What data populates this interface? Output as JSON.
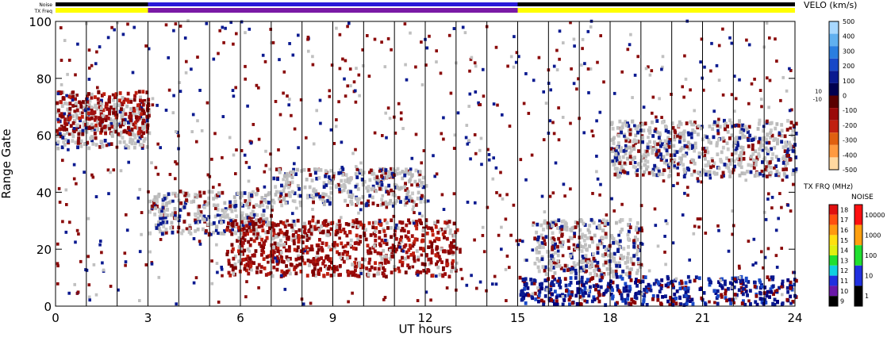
{
  "chart_data": {
    "type": "heatmap",
    "xlabel": "UT hours",
    "ylabel": "Range Gate",
    "xlim": [
      0,
      24
    ],
    "ylim": [
      0,
      100
    ],
    "x_ticks": [
      "0",
      "3",
      "6",
      "9",
      "12",
      "15",
      "18",
      "21",
      "24"
    ],
    "y_ticks": [
      "0",
      "20",
      "40",
      "60",
      "80",
      "100"
    ],
    "vertical_gridlines": [
      1,
      2,
      3,
      4,
      5,
      6,
      7,
      8,
      9,
      10,
      11,
      12,
      13,
      14,
      15,
      16,
      17,
      18,
      19,
      20,
      21,
      22,
      23
    ],
    "status_bars": {
      "noise_label": "Noise",
      "txfreq_label": "TX Freq",
      "txfreq_segments": [
        {
          "from": 0,
          "to": 3,
          "color": "#ffff00"
        },
        {
          "from": 3,
          "to": 15,
          "color": "#7a1aa6"
        },
        {
          "from": 15,
          "to": 24,
          "color": "#ffff00"
        }
      ],
      "noise_segments": [
        {
          "from": 0,
          "to": 3,
          "color": "#000000"
        },
        {
          "from": 3,
          "to": 15,
          "color": "#2a1ad8"
        },
        {
          "from": 15,
          "to": 24,
          "color": "#000000"
        }
      ]
    },
    "velocity_scale": {
      "title": "VELO (km/s)",
      "ticks": [
        "500",
        "400",
        "300",
        "200",
        "100",
        "0",
        "-100",
        "-200",
        "-300",
        "-400",
        "-500"
      ],
      "small_ticks": [
        "10",
        "-10"
      ],
      "colors": [
        "#a8d8ff",
        "#60b0f0",
        "#2a7ee0",
        "#1848c8",
        "#0a1a90",
        "#000050",
        "#5a0000",
        "#9a0a0a",
        "#c02010",
        "#e06010",
        "#ff9a40",
        "#ffd8a0"
      ]
    },
    "txfreq_scale": {
      "title": "TX FRQ (MHz)",
      "ticks": [
        "18",
        "17",
        "16",
        "15",
        "14",
        "13",
        "12",
        "11",
        "10",
        "9"
      ],
      "colors": [
        "#e01010",
        "#ff5010",
        "#ff9a10",
        "#ffe010",
        "#e0f010",
        "#20e030",
        "#10d0e0",
        "#2030e0",
        "#6a18a8",
        "#000000"
      ]
    },
    "noise_scale": {
      "title": "NOISE",
      "ticks": [
        "10000",
        "1000",
        "100",
        "10",
        "1"
      ],
      "colors": [
        "#ff1010",
        "#ffa010",
        "#20e030",
        "#2030e0",
        "#000000"
      ]
    },
    "echo_features": [
      {
        "type": "ground_scatter",
        "x": [
          0,
          3
        ],
        "gate_range": [
          55,
          72
        ]
      },
      {
        "type": "ground_scatter",
        "x": [
          3,
          7
        ],
        "gate_range": [
          25,
          40
        ]
      },
      {
        "type": "ground_scatter",
        "x": [
          7,
          12
        ],
        "gate_range": [
          35,
          48
        ]
      },
      {
        "type": "ground_scatter",
        "x": [
          15.5,
          19
        ],
        "gate_range": [
          10,
          30
        ]
      },
      {
        "type": "ground_scatter",
        "x": [
          18,
          24
        ],
        "gate_range": [
          45,
          65
        ]
      },
      {
        "type": "negative_velocity",
        "x": [
          5.5,
          13
        ],
        "gate_range": [
          10,
          30
        ]
      },
      {
        "type": "negative_velocity",
        "x": [
          0,
          3
        ],
        "gate_range": [
          60,
          75
        ]
      },
      {
        "type": "positive_velocity",
        "x": [
          15,
          24
        ],
        "gate_range": [
          0,
          10
        ]
      }
    ]
  }
}
